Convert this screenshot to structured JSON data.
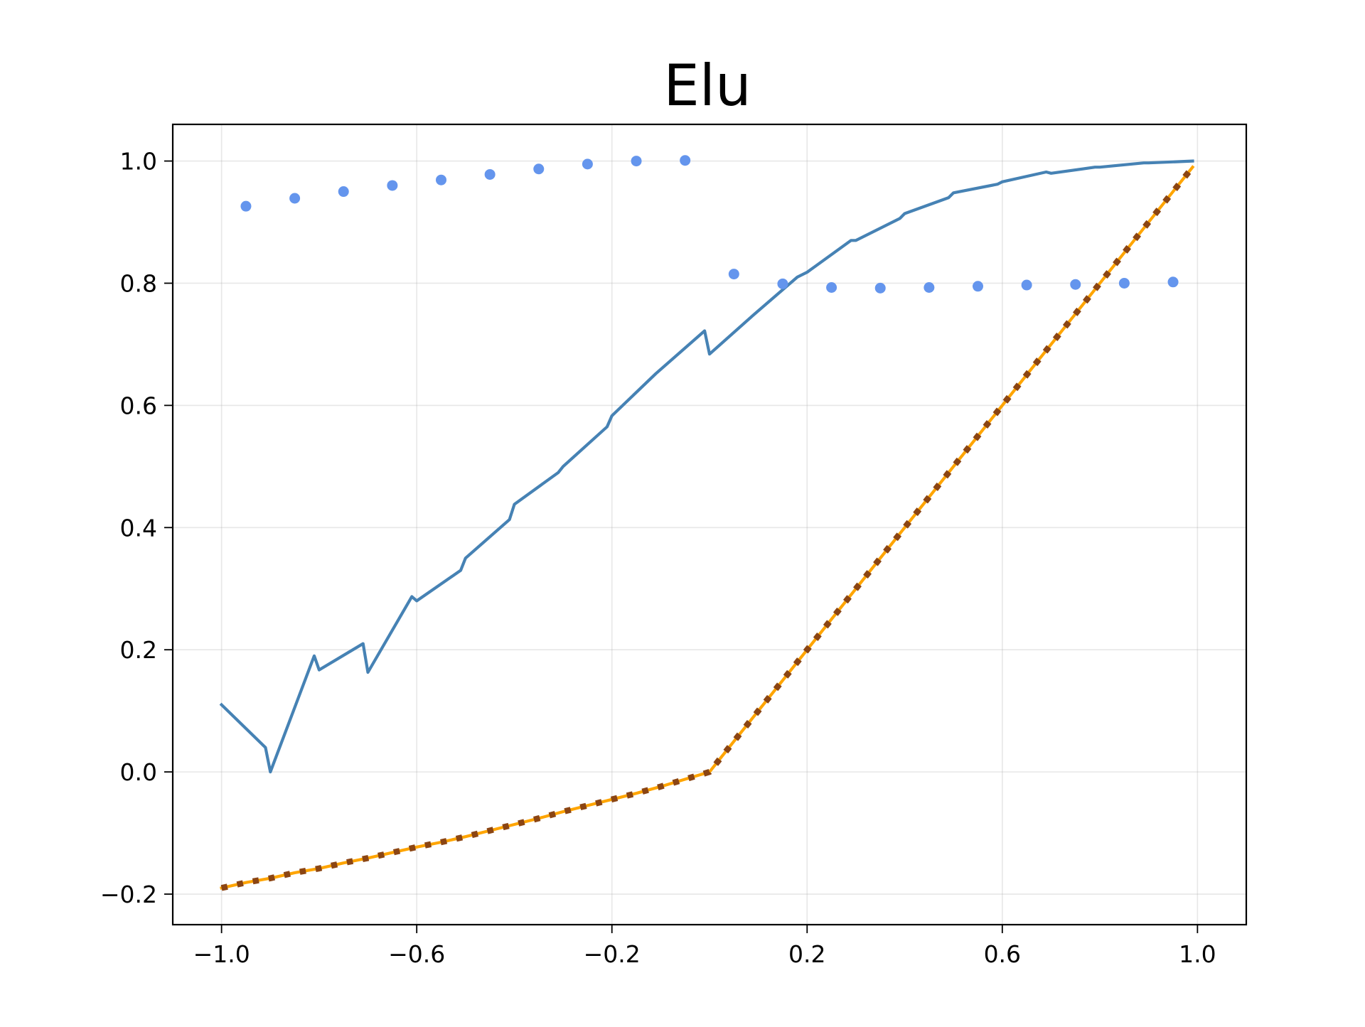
{
  "chart_data": {
    "type": "line",
    "title": "Elu",
    "xlabel": "",
    "ylabel": "",
    "xlim": [
      -1.1,
      1.1
    ],
    "ylim": [
      -0.25,
      1.06
    ],
    "xticks": [
      -1.0,
      -0.6,
      -0.2,
      0.2,
      0.6,
      1.0
    ],
    "xtick_labels": [
      "−1.0",
      "−0.6",
      "−0.2",
      "0.2",
      "0.6",
      "1.0"
    ],
    "yticks": [
      -0.2,
      0.0,
      0.2,
      0.4,
      0.6,
      0.8,
      1.0
    ],
    "ytick_labels": [
      "−0.2",
      "0.0",
      "0.2",
      "0.4",
      "0.6",
      "0.8",
      "1.0"
    ],
    "grid": true,
    "legend": "none",
    "series": [
      {
        "style": "solid",
        "color": "#4682b4",
        "x": [
          -1.0,
          -0.91,
          -0.9,
          -0.81,
          -0.8,
          -0.71,
          -0.7,
          -0.61,
          -0.6,
          -0.51,
          -0.5,
          -0.41,
          -0.4,
          -0.31,
          -0.3,
          -0.21,
          -0.2,
          -0.11,
          -0.01,
          0.0,
          0.09,
          0.18,
          0.2,
          0.29,
          0.3,
          0.39,
          0.4,
          0.49,
          0.5,
          0.59,
          0.6,
          0.69,
          0.7,
          0.79,
          0.8,
          0.89,
          0.9,
          0.99
        ],
        "y": [
          0.11,
          0.04,
          0.0,
          0.19,
          0.167,
          0.21,
          0.163,
          0.287,
          0.28,
          0.33,
          0.35,
          0.413,
          0.438,
          0.49,
          0.5,
          0.565,
          0.583,
          0.652,
          0.722,
          0.684,
          0.748,
          0.81,
          0.818,
          0.87,
          0.87,
          0.906,
          0.914,
          0.94,
          0.948,
          0.962,
          0.966,
          0.982,
          0.98,
          0.99,
          0.99,
          0.997,
          0.997,
          1.0
        ]
      },
      {
        "style": "dots",
        "color": "#6495ed",
        "x": [
          -0.95,
          -0.85,
          -0.75,
          -0.65,
          -0.55,
          -0.45,
          -0.35,
          -0.25,
          -0.15,
          -0.05,
          0.05,
          0.15,
          0.25,
          0.35,
          0.45,
          0.55,
          0.65,
          0.75,
          0.85,
          0.95
        ],
        "y": [
          0.926,
          0.939,
          0.95,
          0.96,
          0.969,
          0.978,
          0.987,
          0.995,
          1.0,
          1.001,
          0.815,
          0.799,
          0.793,
          0.792,
          0.793,
          0.795,
          0.797,
          0.798,
          0.8,
          0.802
        ]
      },
      {
        "style": "solid",
        "color": "#ffa500",
        "x": [
          -1.0,
          -0.95,
          -0.9,
          -0.85,
          -0.8,
          -0.75,
          -0.7,
          -0.65,
          -0.6,
          -0.55,
          -0.5,
          -0.45,
          -0.4,
          -0.35,
          -0.3,
          -0.25,
          -0.2,
          -0.15,
          -0.1,
          -0.05,
          0.0,
          0.05,
          0.1,
          0.15,
          0.2,
          0.25,
          0.3,
          0.35,
          0.4,
          0.45,
          0.5,
          0.55,
          0.6,
          0.65,
          0.7,
          0.75,
          0.8,
          0.85,
          0.9,
          0.95,
          0.99
        ],
        "y": [
          -0.19,
          -0.181,
          -0.174,
          -0.165,
          -0.158,
          -0.149,
          -0.141,
          -0.132,
          -0.123,
          -0.115,
          -0.106,
          -0.096,
          -0.086,
          -0.076,
          -0.065,
          -0.055,
          -0.045,
          -0.035,
          -0.024,
          -0.012,
          0.0,
          0.05,
          0.1,
          0.15,
          0.2,
          0.25,
          0.3,
          0.35,
          0.4,
          0.45,
          0.5,
          0.55,
          0.6,
          0.65,
          0.7,
          0.75,
          0.8,
          0.85,
          0.9,
          0.95,
          0.99
        ]
      },
      {
        "style": "dotted",
        "color": "#8b4513",
        "x": [
          -1.0,
          -0.95,
          -0.9,
          -0.85,
          -0.8,
          -0.75,
          -0.7,
          -0.65,
          -0.6,
          -0.55,
          -0.5,
          -0.45,
          -0.4,
          -0.35,
          -0.3,
          -0.25,
          -0.2,
          -0.15,
          -0.1,
          -0.05,
          0.0,
          0.05,
          0.1,
          0.15,
          0.2,
          0.25,
          0.3,
          0.35,
          0.4,
          0.45,
          0.5,
          0.55,
          0.6,
          0.65,
          0.7,
          0.75,
          0.8,
          0.85,
          0.9,
          0.95,
          0.99
        ],
        "y": [
          -0.19,
          -0.181,
          -0.174,
          -0.165,
          -0.158,
          -0.149,
          -0.141,
          -0.132,
          -0.123,
          -0.115,
          -0.106,
          -0.096,
          -0.086,
          -0.076,
          -0.065,
          -0.055,
          -0.045,
          -0.035,
          -0.024,
          -0.012,
          0.0,
          0.05,
          0.1,
          0.15,
          0.2,
          0.25,
          0.3,
          0.35,
          0.4,
          0.45,
          0.5,
          0.55,
          0.6,
          0.65,
          0.7,
          0.75,
          0.8,
          0.85,
          0.9,
          0.95,
          0.99
        ]
      }
    ]
  }
}
